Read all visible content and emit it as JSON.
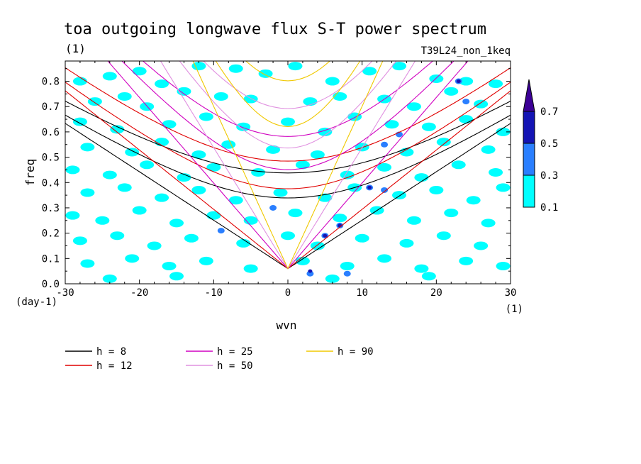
{
  "chart_data": {
    "type": "heatmap",
    "title": "toa outgoing longwave flux S-T power spectrum",
    "title_unit": "(1)",
    "run_label": "T39L24_non_1keq",
    "xlabel": "wvn",
    "ylabel": "freq",
    "x_unit": "(1)",
    "y_unit": "(day-1)",
    "xlim": [
      -30,
      30
    ],
    "ylim": [
      0,
      0.88
    ],
    "x_ticks": [
      -30,
      -20,
      -10,
      0,
      10,
      20,
      30
    ],
    "x_tick_labels": [
      "-30",
      "-20",
      "-10",
      "0",
      "10",
      "20",
      "30"
    ],
    "y_ticks": [
      0.0,
      0.1,
      0.2,
      0.3,
      0.4,
      0.5,
      0.6,
      0.7,
      0.8
    ],
    "y_tick_labels": [
      "0.0",
      "0.1",
      "0.2",
      "0.3",
      "0.4",
      "0.5",
      "0.6",
      "0.7",
      "0.8"
    ],
    "colorbar": {
      "levels": [
        0.1,
        0.3,
        0.5,
        0.7
      ],
      "level_labels": [
        "0.1",
        "0.3",
        "0.5",
        "0.7"
      ],
      "colors": [
        "#00ffff",
        "#2a7fff",
        "#1414b4",
        "#3c0096"
      ]
    },
    "dispersion_curves": [
      {
        "name": "h =  8",
        "h": 8,
        "color": "#000000"
      },
      {
        "name": "h = 12",
        "h": 12,
        "color": "#e00000"
      },
      {
        "name": "h = 25",
        "h": 25,
        "color": "#d000c0"
      },
      {
        "name": "h = 50",
        "h": 50,
        "color": "#e090e0"
      },
      {
        "name": "h = 90",
        "h": 90,
        "color": "#f0c800"
      }
    ],
    "blobs": [
      {
        "x": -28,
        "y": 0.8,
        "level": 1
      },
      {
        "x": -24,
        "y": 0.82,
        "level": 1
      },
      {
        "x": -20,
        "y": 0.84,
        "level": 1
      },
      {
        "x": -17,
        "y": 0.79,
        "level": 1
      },
      {
        "x": -12,
        "y": 0.86,
        "level": 1
      },
      {
        "x": -7,
        "y": 0.85,
        "level": 1
      },
      {
        "x": -3,
        "y": 0.83,
        "level": 1
      },
      {
        "x": 1,
        "y": 0.86,
        "level": 1
      },
      {
        "x": 6,
        "y": 0.8,
        "level": 1
      },
      {
        "x": 11,
        "y": 0.84,
        "level": 1
      },
      {
        "x": 15,
        "y": 0.86,
        "level": 1
      },
      {
        "x": 20,
        "y": 0.81,
        "level": 1
      },
      {
        "x": 24,
        "y": 0.8,
        "level": 1
      },
      {
        "x": 28,
        "y": 0.79,
        "level": 1
      },
      {
        "x": -26,
        "y": 0.72,
        "level": 1
      },
      {
        "x": -22,
        "y": 0.74,
        "level": 1
      },
      {
        "x": -19,
        "y": 0.7,
        "level": 1
      },
      {
        "x": -14,
        "y": 0.76,
        "level": 1
      },
      {
        "x": -9,
        "y": 0.74,
        "level": 1
      },
      {
        "x": -5,
        "y": 0.73,
        "level": 1
      },
      {
        "x": 3,
        "y": 0.72,
        "level": 1
      },
      {
        "x": 7,
        "y": 0.74,
        "level": 1
      },
      {
        "x": 13,
        "y": 0.73,
        "level": 1
      },
      {
        "x": 17,
        "y": 0.7,
        "level": 1
      },
      {
        "x": 22,
        "y": 0.76,
        "level": 1
      },
      {
        "x": 26,
        "y": 0.71,
        "level": 1
      },
      {
        "x": -28,
        "y": 0.64,
        "level": 1
      },
      {
        "x": -23,
        "y": 0.61,
        "level": 1
      },
      {
        "x": -16,
        "y": 0.63,
        "level": 1
      },
      {
        "x": -11,
        "y": 0.66,
        "level": 1
      },
      {
        "x": -6,
        "y": 0.62,
        "level": 1
      },
      {
        "x": 0,
        "y": 0.64,
        "level": 1
      },
      {
        "x": 5,
        "y": 0.6,
        "level": 1
      },
      {
        "x": 9,
        "y": 0.66,
        "level": 1
      },
      {
        "x": 14,
        "y": 0.63,
        "level": 1
      },
      {
        "x": 19,
        "y": 0.62,
        "level": 1
      },
      {
        "x": 24,
        "y": 0.65,
        "level": 1
      },
      {
        "x": 29,
        "y": 0.6,
        "level": 1
      },
      {
        "x": -27,
        "y": 0.54,
        "level": 1
      },
      {
        "x": -21,
        "y": 0.52,
        "level": 1
      },
      {
        "x": -17,
        "y": 0.56,
        "level": 1
      },
      {
        "x": -12,
        "y": 0.51,
        "level": 1
      },
      {
        "x": -8,
        "y": 0.55,
        "level": 1
      },
      {
        "x": -2,
        "y": 0.53,
        "level": 1
      },
      {
        "x": 4,
        "y": 0.51,
        "level": 1
      },
      {
        "x": 10,
        "y": 0.54,
        "level": 1
      },
      {
        "x": 16,
        "y": 0.52,
        "level": 1
      },
      {
        "x": 21,
        "y": 0.56,
        "level": 1
      },
      {
        "x": 27,
        "y": 0.53,
        "level": 1
      },
      {
        "x": -29,
        "y": 0.45,
        "level": 1
      },
      {
        "x": -24,
        "y": 0.43,
        "level": 1
      },
      {
        "x": -19,
        "y": 0.47,
        "level": 1
      },
      {
        "x": -14,
        "y": 0.42,
        "level": 1
      },
      {
        "x": -10,
        "y": 0.46,
        "level": 1
      },
      {
        "x": -4,
        "y": 0.44,
        "level": 1
      },
      {
        "x": 2,
        "y": 0.47,
        "level": 1
      },
      {
        "x": 8,
        "y": 0.43,
        "level": 1
      },
      {
        "x": 13,
        "y": 0.46,
        "level": 1
      },
      {
        "x": 18,
        "y": 0.42,
        "level": 1
      },
      {
        "x": 23,
        "y": 0.47,
        "level": 1
      },
      {
        "x": 28,
        "y": 0.44,
        "level": 1
      },
      {
        "x": -27,
        "y": 0.36,
        "level": 1
      },
      {
        "x": -22,
        "y": 0.38,
        "level": 1
      },
      {
        "x": -17,
        "y": 0.34,
        "level": 1
      },
      {
        "x": -12,
        "y": 0.37,
        "level": 1
      },
      {
        "x": -7,
        "y": 0.33,
        "level": 1
      },
      {
        "x": -1,
        "y": 0.36,
        "level": 1
      },
      {
        "x": 5,
        "y": 0.34,
        "level": 1
      },
      {
        "x": 9,
        "y": 0.38,
        "level": 1
      },
      {
        "x": 15,
        "y": 0.35,
        "level": 1
      },
      {
        "x": 20,
        "y": 0.37,
        "level": 1
      },
      {
        "x": 25,
        "y": 0.33,
        "level": 1
      },
      {
        "x": 29,
        "y": 0.38,
        "level": 1
      },
      {
        "x": -29,
        "y": 0.27,
        "level": 1
      },
      {
        "x": -25,
        "y": 0.25,
        "level": 1
      },
      {
        "x": -20,
        "y": 0.29,
        "level": 1
      },
      {
        "x": -15,
        "y": 0.24,
        "level": 1
      },
      {
        "x": -10,
        "y": 0.27,
        "level": 1
      },
      {
        "x": -5,
        "y": 0.25,
        "level": 1
      },
      {
        "x": 1,
        "y": 0.28,
        "level": 1
      },
      {
        "x": 7,
        "y": 0.26,
        "level": 1
      },
      {
        "x": 12,
        "y": 0.29,
        "level": 1
      },
      {
        "x": 17,
        "y": 0.25,
        "level": 1
      },
      {
        "x": 22,
        "y": 0.28,
        "level": 1
      },
      {
        "x": 27,
        "y": 0.24,
        "level": 1
      },
      {
        "x": -28,
        "y": 0.17,
        "level": 1
      },
      {
        "x": -23,
        "y": 0.19,
        "level": 1
      },
      {
        "x": -18,
        "y": 0.15,
        "level": 1
      },
      {
        "x": -13,
        "y": 0.18,
        "level": 1
      },
      {
        "x": -6,
        "y": 0.16,
        "level": 1
      },
      {
        "x": 0,
        "y": 0.19,
        "level": 1
      },
      {
        "x": 4,
        "y": 0.15,
        "level": 1
      },
      {
        "x": 10,
        "y": 0.18,
        "level": 1
      },
      {
        "x": 16,
        "y": 0.16,
        "level": 1
      },
      {
        "x": 21,
        "y": 0.19,
        "level": 1
      },
      {
        "x": 26,
        "y": 0.15,
        "level": 1
      },
      {
        "x": -27,
        "y": 0.08,
        "level": 1
      },
      {
        "x": -21,
        "y": 0.1,
        "level": 1
      },
      {
        "x": -16,
        "y": 0.07,
        "level": 1
      },
      {
        "x": -11,
        "y": 0.09,
        "level": 1
      },
      {
        "x": -5,
        "y": 0.06,
        "level": 1
      },
      {
        "x": 2,
        "y": 0.09,
        "level": 1
      },
      {
        "x": 8,
        "y": 0.07,
        "level": 1
      },
      {
        "x": 13,
        "y": 0.1,
        "level": 1
      },
      {
        "x": 18,
        "y": 0.06,
        "level": 1
      },
      {
        "x": 24,
        "y": 0.09,
        "level": 1
      },
      {
        "x": 29,
        "y": 0.07,
        "level": 1
      },
      {
        "x": -15,
        "y": 0.03,
        "level": 1
      },
      {
        "x": 6,
        "y": 0.02,
        "level": 1
      },
      {
        "x": 19,
        "y": 0.03,
        "level": 1
      },
      {
        "x": -24,
        "y": 0.02,
        "level": 1
      },
      {
        "x": 23,
        "y": 0.8,
        "level": 2
      },
      {
        "x": 24,
        "y": 0.72,
        "level": 2
      },
      {
        "x": 15,
        "y": 0.59,
        "level": 2
      },
      {
        "x": 13,
        "y": 0.55,
        "level": 2
      },
      {
        "x": 11,
        "y": 0.38,
        "level": 2
      },
      {
        "x": 13,
        "y": 0.37,
        "level": 2
      },
      {
        "x": 7,
        "y": 0.23,
        "level": 2
      },
      {
        "x": 5,
        "y": 0.19,
        "level": 2
      },
      {
        "x": 3,
        "y": 0.04,
        "level": 2
      },
      {
        "x": 8,
        "y": 0.04,
        "level": 2
      },
      {
        "x": -2,
        "y": 0.3,
        "level": 2
      },
      {
        "x": -9,
        "y": 0.21,
        "level": 2
      },
      {
        "x": 11,
        "y": 0.38,
        "level": 3
      },
      {
        "x": 7,
        "y": 0.23,
        "level": 3
      },
      {
        "x": 5,
        "y": 0.19,
        "level": 3
      },
      {
        "x": 3,
        "y": 0.05,
        "level": 3
      },
      {
        "x": 23,
        "y": 0.8,
        "level": 3
      }
    ]
  },
  "legend": {
    "items": [
      {
        "label": "h =  8"
      },
      {
        "label": "h = 25"
      },
      {
        "label": "h = 90"
      },
      {
        "label": "h = 12"
      },
      {
        "label": "h = 50"
      }
    ]
  }
}
